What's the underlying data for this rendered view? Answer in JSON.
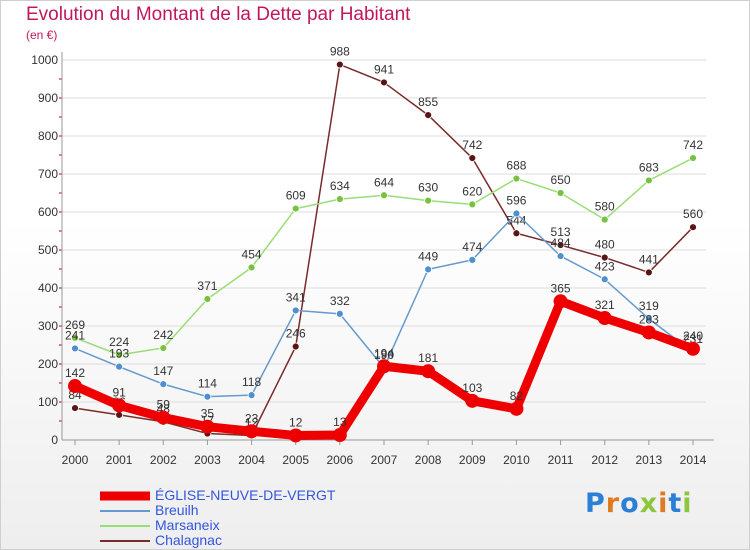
{
  "chart_data": {
    "type": "line",
    "title": "Evolution du Montant de la Dette par Habitant",
    "subtitle": "(en €)",
    "xlabel": "",
    "ylabel": "",
    "categories": [
      "2000",
      "2001",
      "2002",
      "2003",
      "2004",
      "2005",
      "2006",
      "2007",
      "2008",
      "2009",
      "2010",
      "2011",
      "2012",
      "2013",
      "2014"
    ],
    "ylim": [
      0,
      1000
    ],
    "yticks": [
      0,
      100,
      200,
      300,
      400,
      500,
      600,
      700,
      800,
      900,
      1000
    ],
    "grid": true,
    "series": [
      {
        "name": "Chalagnac",
        "color": "#7a2a2a",
        "point_color": "#5a1414",
        "values": [
          84,
          66,
          48,
          17,
          12,
          246,
          988,
          941,
          855,
          742,
          544,
          513,
          480,
          441,
          560
        ]
      },
      {
        "name": "Marsaneix",
        "color": "#99dd77",
        "point_color": "#77c241",
        "values": [
          269,
          224,
          242,
          371,
          454,
          609,
          634,
          644,
          630,
          620,
          688,
          650,
          580,
          683,
          742
        ]
      },
      {
        "name": "Breuilh",
        "color": "#6699cc",
        "point_color": "#4f8fd0",
        "values": [
          241,
          193,
          147,
          114,
          118,
          341,
          332,
          190,
          449,
          474,
          596,
          484,
          423,
          319,
          231
        ]
      },
      {
        "name": "ÉGLISE-NEUVE-DE-VERGT",
        "color": "#ee0000",
        "point_color": "#ee0000",
        "values": [
          142,
          91,
          59,
          35,
          23,
          12,
          13,
          194,
          181,
          103,
          82,
          365,
          321,
          283,
          240
        ]
      }
    ],
    "legend_order": [
      "ÉGLISE-NEUVE-DE-VERGT",
      "Breuilh",
      "Marsaneix",
      "Chalagnac"
    ],
    "legend_position": "bottom-left"
  },
  "logo": {
    "letters": [
      "P",
      "r",
      "o",
      "x",
      "i",
      "t",
      "i"
    ]
  }
}
